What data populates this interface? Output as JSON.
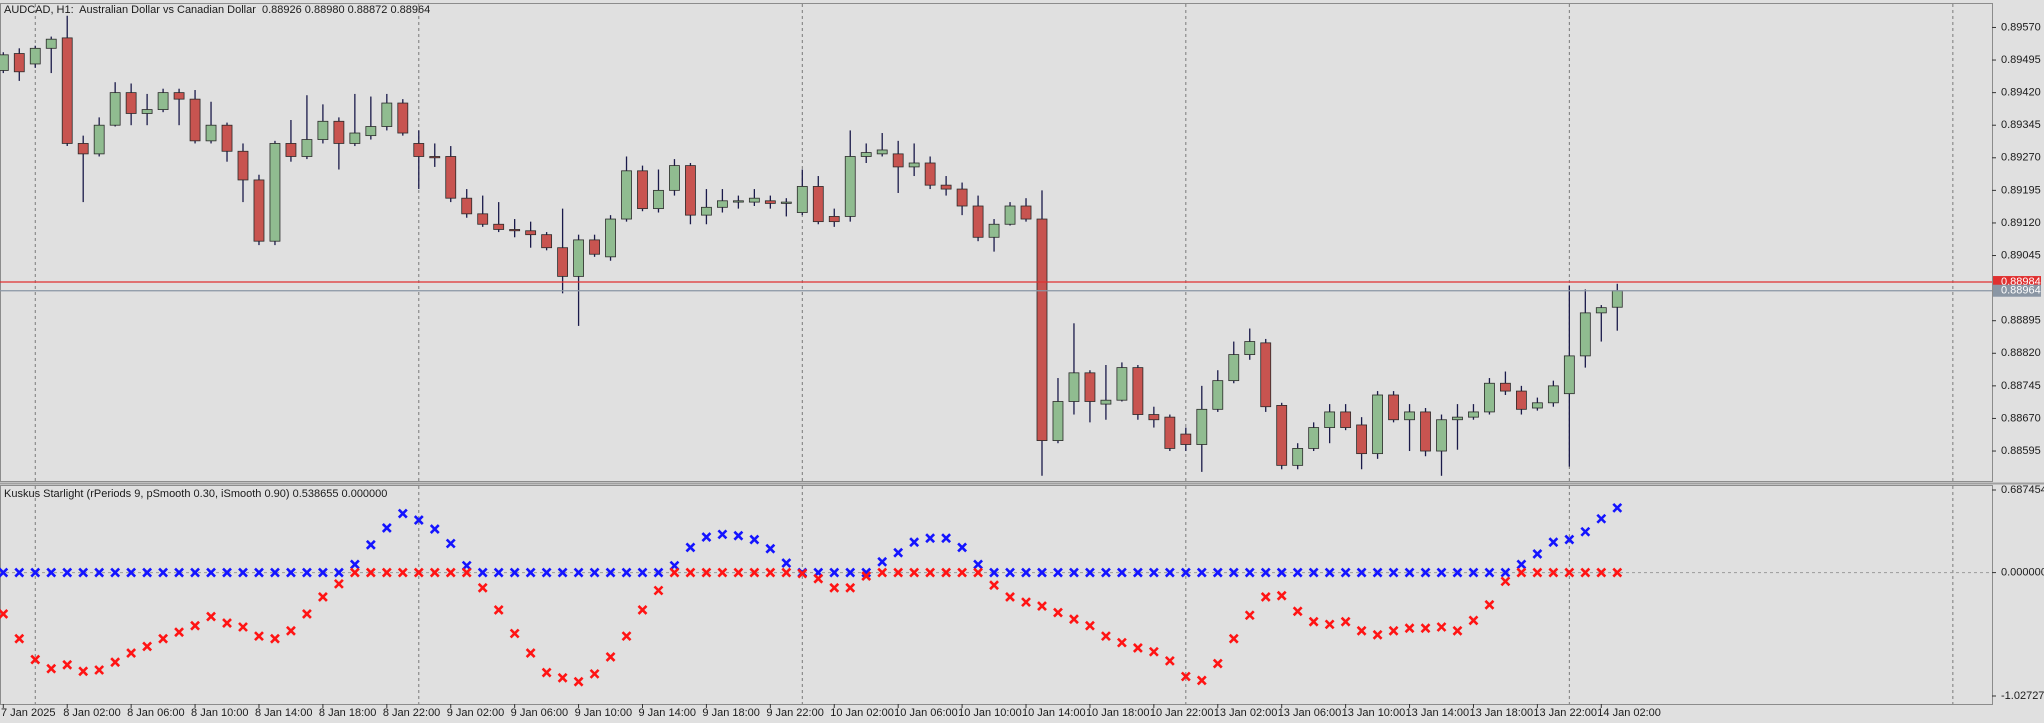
{
  "chart_data": [
    {
      "type": "candlestick",
      "title": "AUDCAD, H1:  Australian Dollar vs Canadian Dollar  0.88926 0.88980 0.88872 0.88964",
      "categories": [
        "7 Jan 2025",
        null,
        null,
        null,
        "8 Jan 02:00",
        null,
        null,
        null,
        "8 Jan 06:00",
        null,
        null,
        null,
        "8 Jan 10:00",
        null,
        null,
        null,
        "8 Jan 14:00",
        null,
        null,
        null,
        "8 Jan 18:00",
        null,
        null,
        null,
        "8 Jan 22:00",
        null,
        null,
        null,
        "9 Jan 02:00",
        null,
        null,
        null,
        "9 Jan 06:00",
        null,
        null,
        null,
        "9 Jan 10:00",
        null,
        null,
        null,
        "9 Jan 14:00",
        null,
        null,
        null,
        "9 Jan 18:00",
        null,
        null,
        null,
        "9 Jan 22:00",
        null,
        null,
        null,
        "10 Jan 02:00",
        null,
        null,
        null,
        "10 Jan 06:00",
        null,
        null,
        null,
        "10 Jan 10:00",
        null,
        null,
        null,
        "10 Jan 14:00",
        null,
        null,
        null,
        "10 Jan 18:00",
        null,
        null,
        null,
        "10 Jan 22:00",
        null,
        null,
        null,
        "13 Jan 02:00",
        null,
        null,
        null,
        "13 Jan 06:00",
        null,
        null,
        null,
        "13 Jan 10:00",
        null,
        null,
        null,
        "13 Jan 14:00",
        null,
        null,
        null,
        "13 Jan 18:00",
        null,
        null,
        null,
        "13 Jan 22:00",
        null,
        null,
        null,
        "14 Jan 02:00",
        null
      ],
      "open": [
        0.89471,
        0.8951,
        0.89486,
        0.89522,
        0.89546,
        0.89303,
        0.89279,
        0.89345,
        0.8942,
        0.89372,
        0.89381,
        0.8942,
        0.89405,
        0.89309,
        0.89345,
        0.89285,
        0.89219,
        0.89078,
        0.89303,
        0.89273,
        0.89312,
        0.89354,
        0.89303,
        0.89321,
        0.89342,
        0.89396,
        0.89303,
        0.89273,
        0.89273,
        0.89177,
        0.89141,
        0.89117,
        0.89105,
        0.89102,
        0.89093,
        0.89063,
        0.88997,
        0.89081,
        0.89042,
        0.89129,
        0.8924,
        0.89153,
        0.89195,
        0.89252,
        0.89138,
        0.89156,
        0.89168,
        0.89168,
        0.89171,
        0.89165,
        0.89144,
        0.89204,
        0.89135,
        0.89135,
        0.89273,
        0.89279,
        0.89279,
        0.89249,
        0.89258,
        0.89207,
        0.89198,
        0.89159,
        0.89087,
        0.89117,
        0.89159,
        0.89129,
        0.88619,
        0.88709,
        0.88775,
        0.88703,
        0.88712,
        0.88787,
        0.88679,
        0.88673,
        0.88634,
        0.8861,
        0.88691,
        0.88757,
        0.88817,
        0.88844,
        0.887,
        0.88562,
        0.88601,
        0.88649,
        0.88685,
        0.88655,
        0.88589,
        0.88724,
        0.88667,
        0.88685,
        0.88595,
        0.88667,
        0.88673,
        0.88685,
        0.88751,
        0.88733,
        0.88694,
        0.88706,
        0.88727,
        0.88814,
        0.88913,
        0.88926
      ],
      "high": [
        0.89513,
        0.89522,
        0.89528,
        0.89549,
        0.89597,
        0.89321,
        0.89363,
        0.89444,
        0.89441,
        0.89417,
        0.89429,
        0.89429,
        0.89426,
        0.89399,
        0.89351,
        0.89303,
        0.89231,
        0.89309,
        0.89357,
        0.89414,
        0.89393,
        0.89363,
        0.89417,
        0.89411,
        0.89417,
        0.89405,
        0.89333,
        0.89303,
        0.89297,
        0.89198,
        0.89183,
        0.89168,
        0.89129,
        0.89123,
        0.89099,
        0.89153,
        0.89093,
        0.89093,
        0.89138,
        0.89273,
        0.89252,
        0.89243,
        0.89267,
        0.89258,
        0.89198,
        0.89198,
        0.89183,
        0.89198,
        0.89183,
        0.89177,
        0.89243,
        0.89228,
        0.89153,
        0.89333,
        0.89303,
        0.89327,
        0.89309,
        0.89303,
        0.89273,
        0.89228,
        0.89213,
        0.89183,
        0.89129,
        0.89168,
        0.89177,
        0.89195,
        0.88763,
        0.88889,
        0.88781,
        0.88793,
        0.88799,
        0.88793,
        0.88697,
        0.88679,
        0.88649,
        0.88745,
        0.88781,
        0.88847,
        0.88877,
        0.88853,
        0.88706,
        0.88613,
        0.88661,
        0.88703,
        0.88703,
        0.88673,
        0.88733,
        0.88733,
        0.88703,
        0.88694,
        0.88679,
        0.88703,
        0.88703,
        0.88763,
        0.88778,
        0.88745,
        0.88718,
        0.88757,
        0.88976,
        0.88967,
        0.88931,
        0.8898
      ],
      "low": [
        0.89465,
        0.89447,
        0.89477,
        0.89465,
        0.89297,
        0.89168,
        0.89273,
        0.89342,
        0.89345,
        0.89345,
        0.89375,
        0.89345,
        0.89303,
        0.89303,
        0.89261,
        0.89168,
        0.89069,
        0.89069,
        0.89261,
        0.89267,
        0.89303,
        0.89243,
        0.89297,
        0.89312,
        0.89333,
        0.89321,
        0.89198,
        0.89249,
        0.89168,
        0.89132,
        0.89111,
        0.89099,
        0.89087,
        0.89063,
        0.89057,
        0.88958,
        0.88883,
        0.89042,
        0.89033,
        0.89123,
        0.89147,
        0.89144,
        0.89183,
        0.89117,
        0.89117,
        0.89144,
        0.89153,
        0.89159,
        0.89153,
        0.89135,
        0.89138,
        0.89117,
        0.89111,
        0.89123,
        0.89258,
        0.89273,
        0.89189,
        0.89228,
        0.89198,
        0.89183,
        0.89138,
        0.89078,
        0.89054,
        0.89114,
        0.89123,
        0.88538,
        0.88613,
        0.88679,
        0.88661,
        0.88667,
        0.88709,
        0.88667,
        0.88649,
        0.88595,
        0.88595,
        0.88547,
        0.88685,
        0.88751,
        0.88805,
        0.88685,
        0.88553,
        0.88553,
        0.88595,
        0.88613,
        0.88643,
        0.88553,
        0.88577,
        0.88661,
        0.88595,
        0.88583,
        0.88538,
        0.88598,
        0.88667,
        0.88679,
        0.88724,
        0.88679,
        0.88688,
        0.88697,
        0.88559,
        0.88787,
        0.88847,
        0.88872
      ],
      "close": [
        0.89507,
        0.89468,
        0.89522,
        0.89543,
        0.89303,
        0.89279,
        0.89345,
        0.8942,
        0.89372,
        0.89381,
        0.8942,
        0.89405,
        0.89309,
        0.89345,
        0.89285,
        0.89219,
        0.89078,
        0.89303,
        0.89273,
        0.89312,
        0.89354,
        0.89303,
        0.89327,
        0.89342,
        0.89396,
        0.89327,
        0.89273,
        0.8927,
        0.89177,
        0.89141,
        0.89117,
        0.89105,
        0.89102,
        0.89093,
        0.89063,
        0.88997,
        0.89081,
        0.89048,
        0.89129,
        0.8924,
        0.89153,
        0.89195,
        0.89252,
        0.89138,
        0.89156,
        0.89171,
        0.89171,
        0.89177,
        0.89165,
        0.89168,
        0.89204,
        0.89123,
        0.89123,
        0.89273,
        0.89282,
        0.89288,
        0.89249,
        0.89258,
        0.89207,
        0.89198,
        0.89159,
        0.89087,
        0.89117,
        0.89159,
        0.89129,
        0.88619,
        0.88709,
        0.88775,
        0.88709,
        0.88712,
        0.88787,
        0.88679,
        0.88667,
        0.88601,
        0.8861,
        0.88691,
        0.88757,
        0.88817,
        0.88847,
        0.88697,
        0.88562,
        0.88601,
        0.88649,
        0.88685,
        0.88649,
        0.88589,
        0.88724,
        0.88667,
        0.88685,
        0.88595,
        0.88667,
        0.88673,
        0.88685,
        0.88751,
        0.88733,
        0.88691,
        0.88706,
        0.88745,
        0.88814,
        0.88913,
        0.88925,
        0.88964
      ],
      "up_color": "#90bc90",
      "down_color": "#c85450",
      "wick_color": "#1a1a4a",
      "ylim": [
        0.88526,
        0.89624
      ],
      "yticks": [
        {
          "value": 0.8957,
          "label": "0.89570"
        },
        {
          "value": 0.89495,
          "label": "0.89495"
        },
        {
          "value": 0.8942,
          "label": "0.89420"
        },
        {
          "value": 0.89345,
          "label": "0.89345"
        },
        {
          "value": 0.8927,
          "label": "0.89270"
        },
        {
          "value": 0.89195,
          "label": "0.89195"
        },
        {
          "value": 0.8912,
          "label": "0.89120"
        },
        {
          "value": 0.89045,
          "label": "0.89045"
        },
        {
          "value": 0.88895,
          "label": "0.88895"
        },
        {
          "value": 0.8882,
          "label": "0.88820"
        },
        {
          "value": 0.88745,
          "label": "0.88745"
        },
        {
          "value": 0.8867,
          "label": "0.88670"
        },
        {
          "value": 0.88595,
          "label": "0.88595"
        }
      ],
      "price_lines": [
        {
          "value": 0.88984,
          "label": "0.88984",
          "color": "#e03030"
        },
        {
          "value": 0.88964,
          "label": "0.88964",
          "color": "#8a96a4"
        }
      ]
    },
    {
      "type": "cross",
      "title": "Kuskus Starlight (rPeriods 9, pSmooth 0.30, iSmooth 0.90) 0.538655 0.000000",
      "series": [
        {
          "color": "#1414ff",
          "values": [
            0,
            0,
            0,
            0,
            0,
            0,
            0,
            0,
            0,
            0,
            0,
            0,
            0,
            0,
            0,
            0,
            0,
            0,
            0,
            0,
            0,
            0,
            0.068,
            0.231,
            0.372,
            0.491,
            0.437,
            0.362,
            0.242,
            0.058,
            0,
            0,
            0,
            0,
            0,
            0,
            0,
            0,
            0,
            0,
            0,
            0,
            0.058,
            0.209,
            0.296,
            0.318,
            0.307,
            0.275,
            0.199,
            0.079,
            0,
            0,
            0,
            0,
            0,
            0.09,
            0.166,
            0.253,
            0.286,
            0.286,
            0.209,
            0.068,
            0,
            0,
            0,
            0,
            0,
            0,
            0,
            0,
            0,
            0,
            0,
            0,
            0,
            0,
            0,
            0,
            0,
            0,
            0,
            0,
            0,
            0,
            0,
            0,
            0,
            0,
            0,
            0,
            0,
            0,
            0,
            0,
            0,
            0.068,
            0.155,
            0.253,
            0.275,
            0.34,
            0.448,
            0.538655
          ]
        },
        {
          "color": "#ff1414",
          "values": [
            -0.344,
            -0.55,
            -0.724,
            -0.8,
            -0.768,
            -0.822,
            -0.811,
            -0.746,
            -0.67,
            -0.615,
            -0.55,
            -0.496,
            -0.442,
            -0.366,
            -0.42,
            -0.453,
            -0.529,
            -0.55,
            -0.485,
            -0.344,
            -0.203,
            -0.094,
            0,
            0,
            0,
            0,
            0,
            0,
            0,
            0,
            -0.127,
            -0.311,
            -0.507,
            -0.67,
            -0.832,
            -0.876,
            -0.908,
            -0.843,
            -0.702,
            -0.529,
            -0.311,
            -0.149,
            0,
            0,
            0,
            0,
            0,
            0,
            0,
            0,
            -0.008,
            -0.051,
            -0.127,
            -0.127,
            -0.029,
            0,
            0,
            0,
            0,
            0,
            0,
            0,
            -0.105,
            -0.203,
            -0.246,
            -0.279,
            -0.333,
            -0.388,
            -0.442,
            -0.529,
            -0.583,
            -0.627,
            -0.659,
            -0.735,
            -0.865,
            -0.898,
            -0.757,
            -0.55,
            -0.355,
            -0.203,
            -0.192,
            -0.322,
            -0.409,
            -0.431,
            -0.409,
            -0.485,
            -0.518,
            -0.485,
            -0.463,
            -0.463,
            -0.453,
            -0.485,
            -0.398,
            -0.268,
            -0.073,
            0,
            0,
            0,
            0,
            0,
            0,
            0
          ]
        }
      ],
      "ylim": [
        -1.027276,
        0.687454
      ],
      "yticks": [
        {
          "value": 0.687454,
          "label": "0.687454"
        },
        {
          "value": 0,
          "label": "0.000000"
        },
        {
          "value": -1.027276,
          "label": "-1.027276"
        }
      ]
    }
  ]
}
